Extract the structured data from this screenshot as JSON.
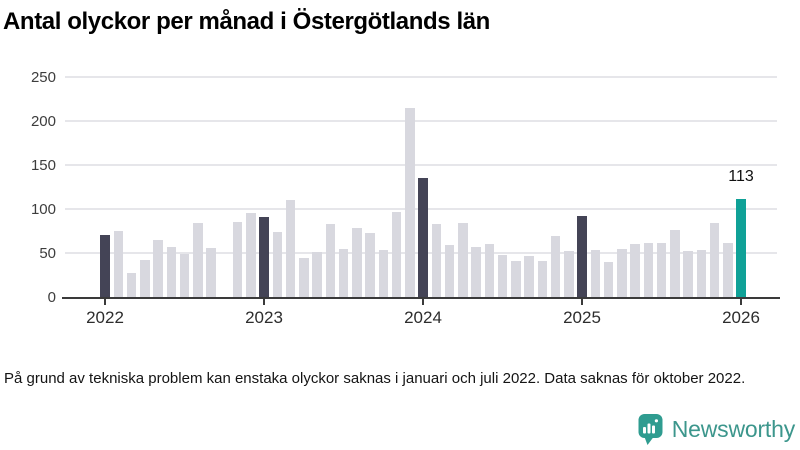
{
  "header": {
    "title": "Antal olyckor per månad i Östergötlands län"
  },
  "footnote": {
    "text": "På grund av tekniska problem kan enstaka olyckor saknas i januari och juli 2022. Data saknas för oktober 2022."
  },
  "branding": {
    "name": "Newsworthy",
    "icon": "newsworthy-speech-bubble-bar-chart-icon",
    "icon_color": "#2f9c90",
    "text_color": "#3c968c"
  },
  "chart_data": {
    "type": "bar",
    "title": "Antal olyckor per månad i Östergötlands län",
    "xlabel": "",
    "ylabel": "",
    "ylim": [
      0,
      250
    ],
    "yticks": [
      0,
      50,
      100,
      150,
      200,
      250
    ],
    "grid": "horizontal",
    "legend_position": "none",
    "xticks": [
      {
        "index": 0,
        "label": "2022"
      },
      {
        "index": 12,
        "label": "2023"
      },
      {
        "index": 24,
        "label": "2024"
      },
      {
        "index": 36,
        "label": "2025"
      },
      {
        "index": 48,
        "label": "2026"
      }
    ],
    "months": [
      "2022-01",
      "2022-02",
      "2022-03",
      "2022-04",
      "2022-05",
      "2022-06",
      "2022-07",
      "2022-08",
      "2022-09",
      "2022-10",
      "2022-11",
      "2022-12",
      "2023-01",
      "2023-02",
      "2023-03",
      "2023-04",
      "2023-05",
      "2023-06",
      "2023-07",
      "2023-08",
      "2023-09",
      "2023-10",
      "2023-11",
      "2023-12",
      "2024-01",
      "2024-02",
      "2024-03",
      "2024-04",
      "2024-05",
      "2024-06",
      "2024-07",
      "2024-08",
      "2024-09",
      "2024-10",
      "2024-11",
      "2024-12",
      "2025-01",
      "2025-02",
      "2025-03",
      "2025-04",
      "2025-05",
      "2025-06",
      "2025-07",
      "2025-08",
      "2025-09",
      "2025-10",
      "2025-11",
      "2025-12",
      "2026-01"
    ],
    "values": [
      72,
      76,
      29,
      43,
      66,
      58,
      50,
      85,
      57,
      null,
      87,
      97,
      92,
      75,
      112,
      46,
      52,
      84,
      56,
      80,
      74,
      55,
      98,
      216,
      137,
      84,
      60,
      85,
      58,
      61,
      49,
      42,
      48,
      42,
      70,
      53,
      93,
      55,
      41,
      56,
      61,
      63,
      63,
      77,
      53,
      55,
      85,
      63,
      113
    ],
    "highlight_indices": [
      0,
      12,
      24,
      36
    ],
    "current_index": 48,
    "annotation": {
      "text": "113",
      "index": 48
    },
    "missing_months": [
      "2022-10"
    ],
    "colors": {
      "normal": "#d8d8df",
      "highlight": "#444456",
      "current": "#0fa197"
    }
  }
}
